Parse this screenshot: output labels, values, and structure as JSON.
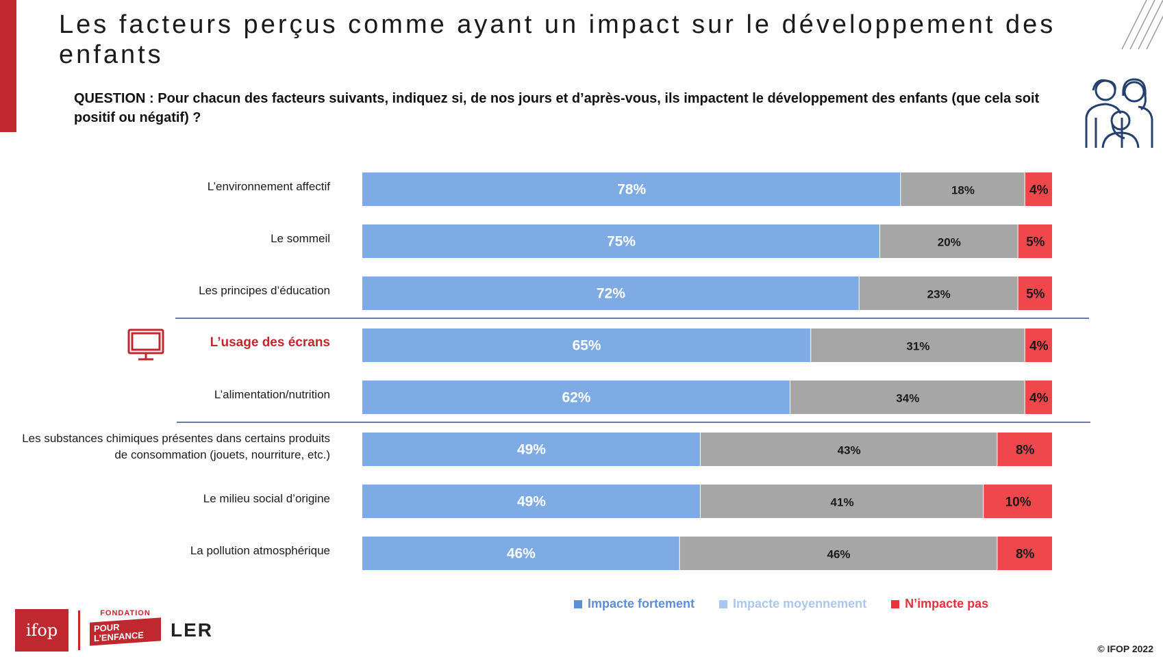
{
  "title": "Les facteurs perçus comme ayant un impact sur le développement des enfants",
  "question": "QUESTION : Pour chacun des facteurs suivants, indiquez si, de nos jours et d’après-vous, ils impactent le développement des enfants (que cela soit positif ou négatif) ?",
  "highlight_color": "#c0282f",
  "chart_data": {
    "type": "bar",
    "orientation": "horizontal",
    "stacked": true,
    "categories": [
      "L’environnement affectif",
      "Le sommeil",
      "Les principes d’éducation",
      "L’usage des écrans",
      "L’alimentation/nutrition",
      "Les substances chimiques présentes dans certains produits de consommation (jouets, nourriture, etc.)",
      "Le milieu social d’origine",
      "La pollution atmosphérique"
    ],
    "highlighted_category": "L’usage des écrans",
    "series": [
      {
        "name": "Impacte fortement",
        "color": "#7eabe4",
        "values": [
          78,
          75,
          72,
          65,
          62,
          49,
          49,
          46
        ],
        "labels": [
          "78%",
          "75%",
          "72%",
          "65%",
          "62%",
          "49%",
          "49%",
          "46%"
        ]
      },
      {
        "name": "Impacte moyennement",
        "color": "#a6a6a6",
        "values": [
          18,
          20,
          23,
          31,
          34,
          43,
          41,
          46
        ],
        "labels": [
          "18%",
          "20%",
          "23%",
          "31%",
          "34%",
          "43%",
          "41%",
          "46%"
        ]
      },
      {
        "name": "N’impacte pas",
        "color": "#f0474d",
        "values": [
          4,
          5,
          5,
          4,
          4,
          8,
          10,
          8
        ],
        "labels": [
          "4%",
          "5%",
          "5%",
          "4%",
          "4%",
          "8%",
          "10%",
          "8%"
        ]
      }
    ],
    "legend_label_colors": [
      "#5b8fd6",
      "#a9c8ef",
      "#e8313a"
    ],
    "xlim": [
      0,
      100
    ],
    "legend_position": "bottom",
    "grid": false
  },
  "logos": {
    "ifop": "ifop",
    "fondation_top": "FONDATION",
    "fondation_badge": "POUR L’ENFANCE",
    "ler": "LER"
  },
  "copyright": "© IFOP 2022"
}
